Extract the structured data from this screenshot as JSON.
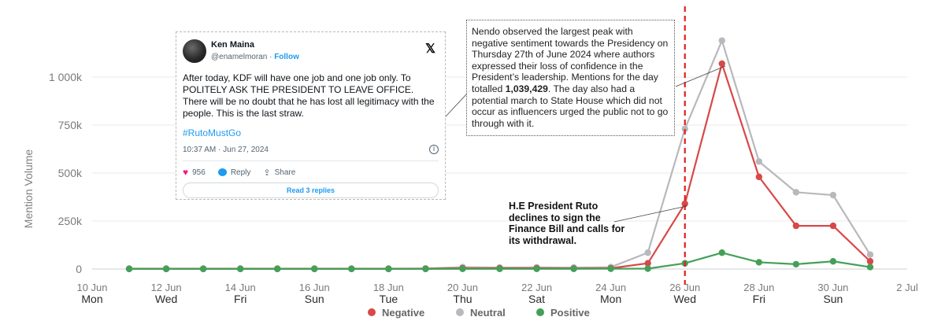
{
  "chart_data": {
    "type": "line",
    "ylabel": "Mention Volume",
    "ylim": [
      0,
      1200000
    ],
    "yticks": [
      0,
      250000,
      500000,
      750000,
      1000000
    ],
    "ytick_labels": [
      "0",
      "250k",
      "500k",
      "750k",
      "1 000k"
    ],
    "xlim": [
      "2024-06-10",
      "2024-07-02"
    ],
    "xticks": [
      {
        "date": "2024-06-10",
        "label": "10 Jun",
        "day": "Mon"
      },
      {
        "date": "2024-06-12",
        "label": "12 Jun",
        "day": "Wed"
      },
      {
        "date": "2024-06-14",
        "label": "14 Jun",
        "day": "Fri"
      },
      {
        "date": "2024-06-16",
        "label": "16 Jun",
        "day": "Sun"
      },
      {
        "date": "2024-06-18",
        "label": "18 Jun",
        "day": "Tue"
      },
      {
        "date": "2024-06-20",
        "label": "20 Jun",
        "day": "Thu"
      },
      {
        "date": "2024-06-22",
        "label": "22 Jun",
        "day": "Sat"
      },
      {
        "date": "2024-06-24",
        "label": "24 Jun",
        "day": "Mon"
      },
      {
        "date": "2024-06-26",
        "label": "26 Jun",
        "day": "Wed"
      },
      {
        "date": "2024-06-28",
        "label": "28 Jun",
        "day": "Fri"
      },
      {
        "date": "2024-06-30",
        "label": "30 Jun",
        "day": "Sun"
      },
      {
        "date": "2024-07-02",
        "label": "2 Jul",
        "day": ""
      }
    ],
    "x": [
      "2024-06-11",
      "2024-06-12",
      "2024-06-13",
      "2024-06-14",
      "2024-06-15",
      "2024-06-16",
      "2024-06-17",
      "2024-06-18",
      "2024-06-19",
      "2024-06-20",
      "2024-06-21",
      "2024-06-22",
      "2024-06-23",
      "2024-06-24",
      "2024-06-25",
      "2024-06-26",
      "2024-06-27",
      "2024-06-28",
      "2024-06-29",
      "2024-06-30",
      "2024-07-01"
    ],
    "series": [
      {
        "name": "Neutral",
        "color": "#b8b8bd",
        "values": [
          2000,
          2000,
          2000,
          2000,
          2000,
          2000,
          2000,
          2000,
          3000,
          10000,
          8000,
          9000,
          8000,
          10000,
          85000,
          730000,
          1190000,
          560000,
          400000,
          385000,
          75000
        ]
      },
      {
        "name": "Negative",
        "color": "#d84848",
        "values": [
          1000,
          1000,
          1000,
          1000,
          1000,
          1000,
          1000,
          1000,
          1500,
          4000,
          4000,
          4000,
          3000,
          4000,
          30000,
          340000,
          1070000,
          480000,
          225000,
          225000,
          40000
        ]
      },
      {
        "name": "Positive",
        "color": "#44a058",
        "values": [
          500,
          500,
          500,
          500,
          500,
          500,
          500,
          500,
          500,
          1000,
          1000,
          1000,
          1000,
          1500,
          2000,
          30000,
          85000,
          35000,
          25000,
          40000,
          10000
        ]
      }
    ],
    "event_line": {
      "date": "2024-06-26",
      "color": "#e02020",
      "style": "dashed"
    },
    "grid": "horizontal",
    "legend_position": "bottom-center"
  },
  "tweet": {
    "author": "Ken Maina",
    "handle": "@enamelmoran",
    "follow_label": "Follow",
    "text": "After today, KDF will have one job and one job only. To POLITELY ASK THE PRESIDENT TO LEAVE OFFICE. There will be no doubt that he has lost all legitimacy with the people. This is the last straw.",
    "hashtag": "#RutoMustGo",
    "timestamp": "10:37 AM · Jun 27, 2024",
    "likes": "956",
    "reply_label": "Reply",
    "share_label": "Share",
    "read_replies_label": "Read 3 replies"
  },
  "annotation": {
    "text_before": "Nendo observed the largest peak with negative sentiment towards the Presidency on Thursday 27th of June 2024 where authors expressed their loss of confidence in the President’s leadership. Mentions for the day totalled ",
    "highlight": "1,039,429",
    "text_after": ". The day also had a potential march to State House which did not occur as influencers urged the public not to go through with it."
  },
  "callout": {
    "text": "H.E President Ruto declines to sign the Finance Bill and calls for its withdrawal."
  }
}
